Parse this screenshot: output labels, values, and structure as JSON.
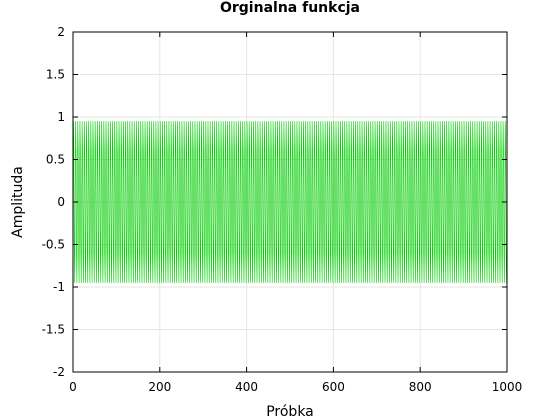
{
  "chart_data": {
    "type": "line",
    "title": "Orginalna funkcja",
    "xlabel": "Próbka",
    "ylabel": "Amplituda",
    "xlim": [
      0,
      1000
    ],
    "ylim": [
      -2,
      2
    ],
    "x_ticks": [
      "0",
      "200",
      "400",
      "600",
      "800",
      "1000"
    ],
    "y_ticks": [
      "2",
      "1.5",
      "1",
      "0.5",
      "0",
      "-0.5",
      "-1",
      "-1.5",
      "-2"
    ],
    "grid": true,
    "legend": "none",
    "series": [
      {
        "color": "#00cc00",
        "function": "sine",
        "amplitude": 1,
        "period_samples": 5,
        "x_range": [
          0,
          1000
        ]
      }
    ]
  }
}
